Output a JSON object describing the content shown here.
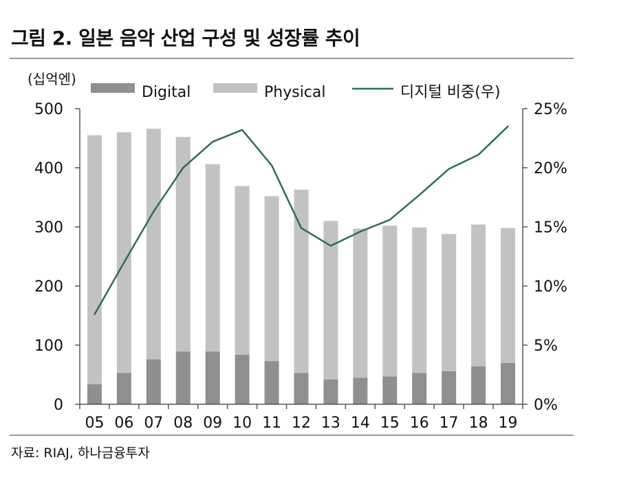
{
  "title": "그림 2. 일본 음악 산업 구성 및 성장률 추이",
  "source": "자료: RIAJ, 하나금융투자",
  "colors": {
    "digital": "#8f8f8f",
    "physical": "#c2c2c2",
    "line": "#2e6b5e",
    "axis": "#555555"
  },
  "chart_data": {
    "type": "bar",
    "stacked": true,
    "unit_label": "(십억엔)",
    "categories": [
      "05",
      "06",
      "07",
      "08",
      "09",
      "10",
      "11",
      "12",
      "13",
      "14",
      "15",
      "16",
      "17",
      "18",
      "19"
    ],
    "series": [
      {
        "name": "Digital",
        "axis": "left",
        "values": [
          34,
          53,
          76,
          89,
          89,
          84,
          73,
          53,
          42,
          45,
          47,
          53,
          56,
          64,
          70
        ]
      },
      {
        "name": "Physical",
        "axis": "left",
        "values": [
          421,
          407,
          390,
          363,
          317,
          285,
          279,
          310,
          268,
          252,
          255,
          246,
          232,
          240,
          228
        ]
      },
      {
        "name": "디지털 비중(우)",
        "axis": "right",
        "type": "line",
        "values": [
          7.6,
          12.0,
          16.3,
          20.0,
          22.2,
          23.2,
          20.2,
          14.9,
          13.4,
          14.6,
          15.6,
          17.7,
          19.9,
          21.1,
          23.5
        ]
      }
    ],
    "left_axis": {
      "ylim": [
        0,
        500
      ],
      "ticks": [
        "0",
        "100",
        "200",
        "300",
        "400",
        "500"
      ]
    },
    "right_axis": {
      "ylim": [
        0,
        25
      ],
      "ticks": [
        "0%",
        "5%",
        "10%",
        "15%",
        "20%",
        "25%"
      ]
    },
    "legend_position": "top",
    "grid": false
  }
}
